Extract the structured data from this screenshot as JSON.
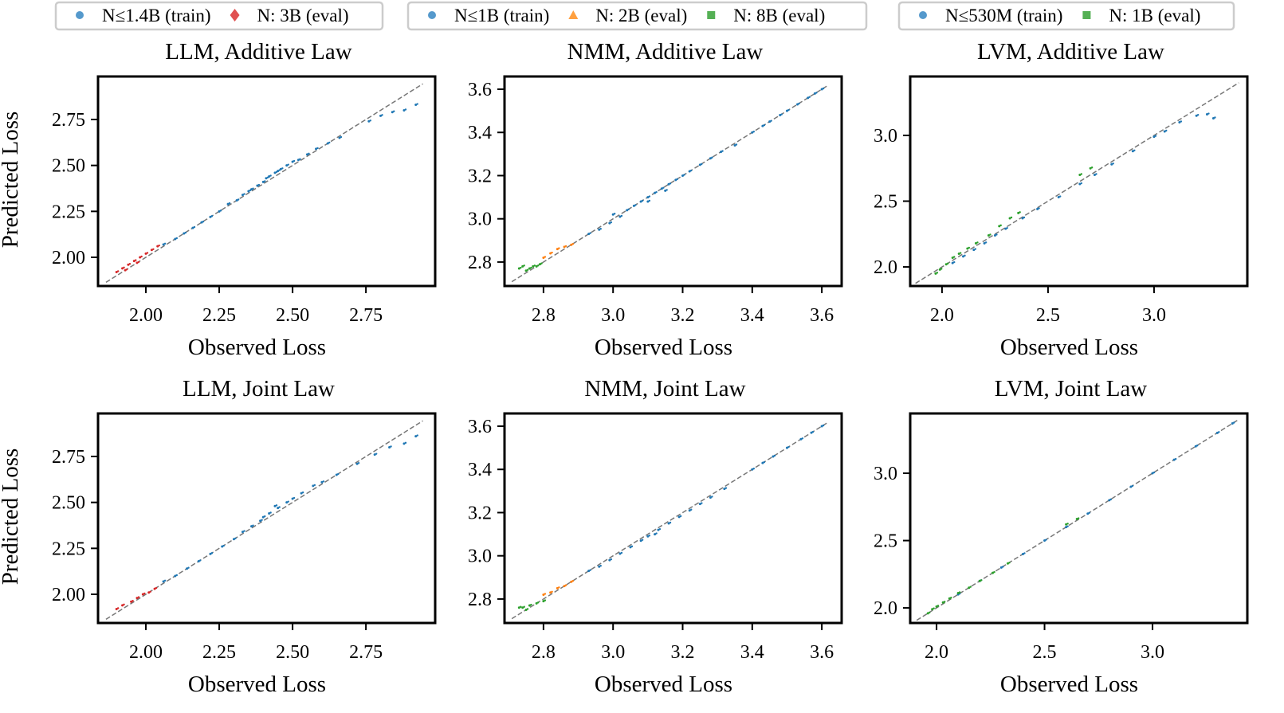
{
  "colors": {
    "train": "#1f77b4",
    "eval_red": "#d62728",
    "eval_orange": "#ff7f0e",
    "eval_green": "#2ca02c",
    "legend_train": "#5599cc",
    "legend_red": "#e05050",
    "legend_orange": "#ffa040",
    "legend_green": "#55b055",
    "diagonal": "#777777"
  },
  "chart_data": [
    {
      "type": "scatter",
      "title": "LLM, Additive Law",
      "xlabel": "Observed Loss",
      "ylabel": "Predicted Loss",
      "xlim": [
        1.837,
        2.986
      ],
      "ylim": [
        1.844,
        2.984
      ],
      "xticks": [
        "2.00",
        "2.25",
        "2.50",
        "2.75"
      ],
      "yticks": [
        "2.00",
        "2.25",
        "2.50",
        "2.75"
      ],
      "legend": [
        {
          "label": "N≤1.4B (train)",
          "marker": "circle",
          "color": "legend_train"
        },
        {
          "label": "N: 3B (eval)",
          "marker": "diamond",
          "color": "legend_red"
        }
      ],
      "series": [
        {
          "name": "N≤1.4B (train)",
          "color": "train",
          "points": [
            [
              2.06,
              2.07
            ],
            [
              2.1,
              2.1
            ],
            [
              2.13,
              2.13
            ],
            [
              2.16,
              2.16
            ],
            [
              2.19,
              2.19
            ],
            [
              2.22,
              2.22
            ],
            [
              2.25,
              2.25
            ],
            [
              2.28,
              2.29
            ],
            [
              2.31,
              2.31
            ],
            [
              2.33,
              2.34
            ],
            [
              2.36,
              2.37
            ],
            [
              2.38,
              2.39
            ],
            [
              2.4,
              2.41
            ],
            [
              2.42,
              2.44
            ],
            [
              2.44,
              2.46
            ],
            [
              2.46,
              2.48
            ],
            [
              2.48,
              2.5
            ],
            [
              2.5,
              2.52
            ],
            [
              2.52,
              2.53
            ],
            [
              2.55,
              2.56
            ],
            [
              2.58,
              2.59
            ],
            [
              2.62,
              2.62
            ],
            [
              2.66,
              2.65
            ],
            [
              2.76,
              2.74
            ],
            [
              2.8,
              2.77
            ],
            [
              2.84,
              2.79
            ],
            [
              2.88,
              2.8
            ],
            [
              2.92,
              2.83
            ],
            [
              2.45,
              2.47
            ],
            [
              2.41,
              2.43
            ],
            [
              2.35,
              2.36
            ]
          ]
        },
        {
          "name": "N: 3B (eval)",
          "color": "eval_red",
          "points": [
            [
              1.9,
              1.92
            ],
            [
              1.92,
              1.94
            ],
            [
              1.94,
              1.96
            ],
            [
              1.96,
              1.98
            ],
            [
              1.98,
              2.0
            ],
            [
              2.0,
              2.02
            ],
            [
              2.02,
              2.04
            ],
            [
              2.04,
              2.06
            ],
            [
              1.93,
              1.93
            ],
            [
              1.97,
              1.97
            ]
          ]
        }
      ]
    },
    {
      "type": "scatter",
      "title": "NMM, Additive Law",
      "xlabel": "Observed Loss",
      "ylabel": "",
      "xlim": [
        2.688,
        3.657
      ],
      "ylim": [
        2.689,
        3.659
      ],
      "xticks": [
        "2.8",
        "3.0",
        "3.2",
        "3.4",
        "3.6"
      ],
      "yticks": [
        "2.8",
        "3.0",
        "3.2",
        "3.4",
        "3.6"
      ],
      "legend": [
        {
          "label": "N≤1B (train)",
          "marker": "circle",
          "color": "legend_train"
        },
        {
          "label": "N: 2B (eval)",
          "marker": "triangle",
          "color": "legend_orange"
        },
        {
          "label": "N: 8B (eval)",
          "marker": "square",
          "color": "legend_green"
        }
      ],
      "series": [
        {
          "name": "N≤1B (train)",
          "color": "train",
          "points": [
            [
              2.93,
              2.93
            ],
            [
              2.96,
              2.95
            ],
            [
              2.99,
              2.98
            ],
            [
              3.02,
              3.01
            ],
            [
              3.04,
              3.04
            ],
            [
              3.06,
              3.06
            ],
            [
              3.08,
              3.08
            ],
            [
              3.1,
              3.1
            ],
            [
              3.12,
              3.12
            ],
            [
              3.14,
              3.14
            ],
            [
              3.16,
              3.16
            ],
            [
              3.18,
              3.18
            ],
            [
              3.2,
              3.2
            ],
            [
              3.22,
              3.22
            ],
            [
              3.25,
              3.25
            ],
            [
              3.28,
              3.28
            ],
            [
              3.31,
              3.31
            ],
            [
              3.35,
              3.34
            ],
            [
              3.4,
              3.4
            ],
            [
              3.43,
              3.43
            ],
            [
              3.45,
              3.45
            ],
            [
              3.48,
              3.48
            ],
            [
              3.5,
              3.5
            ],
            [
              3.53,
              3.53
            ],
            [
              3.56,
              3.56
            ],
            [
              3.58,
              3.58
            ],
            [
              3.6,
              3.6
            ],
            [
              3.1,
              3.08
            ],
            [
              3.15,
              3.13
            ],
            [
              3.0,
              3.02
            ]
          ]
        },
        {
          "name": "N: 2B (eval)",
          "color": "eval_orange",
          "points": [
            [
              2.8,
              2.82
            ],
            [
              2.82,
              2.84
            ],
            [
              2.84,
              2.86
            ],
            [
              2.86,
              2.87
            ],
            [
              2.88,
              2.88
            ]
          ]
        },
        {
          "name": "N: 8B (eval)",
          "color": "eval_green",
          "points": [
            [
              2.73,
              2.77
            ],
            [
              2.74,
              2.78
            ],
            [
              2.76,
              2.77
            ],
            [
              2.77,
              2.78
            ],
            [
              2.78,
              2.78
            ],
            [
              2.79,
              2.79
            ],
            [
              2.75,
              2.76
            ]
          ]
        }
      ]
    },
    {
      "type": "scatter",
      "title": "LVM, Additive Law",
      "xlabel": "Observed Loss",
      "ylabel": "",
      "xlim": [
        1.85,
        3.44
      ],
      "ylim": [
        1.855,
        3.448
      ],
      "xticks": [
        "2.0",
        "2.5",
        "3.0"
      ],
      "yticks": [
        "2.0",
        "2.5",
        "3.0"
      ],
      "legend": [
        {
          "label": "N≤530M (train)",
          "marker": "circle",
          "color": "legend_train"
        },
        {
          "label": "N: 1B (eval)",
          "marker": "square",
          "color": "legend_green"
        }
      ],
      "series": [
        {
          "name": "N≤530M (train)",
          "color": "train",
          "points": [
            [
              2.05,
              2.03
            ],
            [
              2.1,
              2.08
            ],
            [
              2.15,
              2.13
            ],
            [
              2.2,
              2.18
            ],
            [
              2.25,
              2.24
            ],
            [
              2.3,
              2.29
            ],
            [
              2.38,
              2.37
            ],
            [
              2.45,
              2.44
            ],
            [
              2.55,
              2.53
            ],
            [
              2.65,
              2.63
            ],
            [
              2.72,
              2.7
            ],
            [
              2.8,
              2.78
            ],
            [
              2.9,
              2.88
            ],
            [
              3.0,
              2.99
            ],
            [
              3.05,
              3.03
            ],
            [
              3.12,
              3.1
            ],
            [
              3.2,
              3.15
            ],
            [
              3.25,
              3.16
            ],
            [
              3.28,
              3.13
            ]
          ]
        },
        {
          "name": "N: 1B (eval)",
          "color": "eval_green",
          "points": [
            [
              1.97,
              1.95
            ],
            [
              1.99,
              1.98
            ],
            [
              2.02,
              2.02
            ],
            [
              2.05,
              2.07
            ],
            [
              2.08,
              2.1
            ],
            [
              2.12,
              2.14
            ],
            [
              2.16,
              2.18
            ],
            [
              2.22,
              2.24
            ],
            [
              2.27,
              2.31
            ],
            [
              2.32,
              2.37
            ],
            [
              2.36,
              2.41
            ],
            [
              2.65,
              2.7
            ],
            [
              2.7,
              2.75
            ]
          ]
        }
      ]
    },
    {
      "type": "scatter",
      "title": "LLM, Joint Law",
      "xlabel": "Observed Loss",
      "ylabel": "Predicted Loss",
      "xlim": [
        1.837,
        2.986
      ],
      "ylim": [
        1.844,
        2.984
      ],
      "xticks": [
        "2.00",
        "2.25",
        "2.50",
        "2.75"
      ],
      "yticks": [
        "2.00",
        "2.25",
        "2.50",
        "2.75"
      ],
      "series": [
        {
          "name": "N≤1.4B (train)",
          "color": "train",
          "points": [
            [
              2.06,
              2.07
            ],
            [
              2.1,
              2.1
            ],
            [
              2.14,
              2.14
            ],
            [
              2.18,
              2.18
            ],
            [
              2.22,
              2.22
            ],
            [
              2.26,
              2.26
            ],
            [
              2.3,
              2.3
            ],
            [
              2.33,
              2.34
            ],
            [
              2.36,
              2.37
            ],
            [
              2.39,
              2.4
            ],
            [
              2.42,
              2.44
            ],
            [
              2.45,
              2.47
            ],
            [
              2.48,
              2.5
            ],
            [
              2.5,
              2.52
            ],
            [
              2.53,
              2.55
            ],
            [
              2.57,
              2.59
            ],
            [
              2.6,
              2.61
            ],
            [
              2.65,
              2.65
            ],
            [
              2.72,
              2.71
            ],
            [
              2.78,
              2.76
            ],
            [
              2.83,
              2.8
            ],
            [
              2.88,
              2.82
            ],
            [
              2.92,
              2.86
            ],
            [
              2.44,
              2.48
            ],
            [
              2.4,
              2.42
            ]
          ]
        },
        {
          "name": "N: 3B (eval)",
          "color": "eval_red",
          "points": [
            [
              1.9,
              1.92
            ],
            [
              1.92,
              1.94
            ],
            [
              1.95,
              1.96
            ],
            [
              1.97,
              1.98
            ],
            [
              1.99,
              2.0
            ],
            [
              2.01,
              2.01
            ],
            [
              2.03,
              2.03
            ]
          ]
        }
      ]
    },
    {
      "type": "scatter",
      "title": "NMM, Joint Law",
      "xlabel": "Observed Loss",
      "ylabel": "",
      "xlim": [
        2.688,
        3.657
      ],
      "ylim": [
        2.689,
        3.659
      ],
      "xticks": [
        "2.8",
        "3.0",
        "3.2",
        "3.4",
        "3.6"
      ],
      "yticks": [
        "2.8",
        "3.0",
        "3.2",
        "3.4",
        "3.6"
      ],
      "series": [
        {
          "name": "N≤1B (train)",
          "color": "train",
          "points": [
            [
              2.93,
              2.93
            ],
            [
              2.96,
              2.95
            ],
            [
              2.99,
              2.98
            ],
            [
              3.02,
              3.01
            ],
            [
              3.05,
              3.04
            ],
            [
              3.08,
              3.07
            ],
            [
              3.1,
              3.09
            ],
            [
              3.13,
              3.12
            ],
            [
              3.16,
              3.15
            ],
            [
              3.19,
              3.18
            ],
            [
              3.22,
              3.21
            ],
            [
              3.25,
              3.24
            ],
            [
              3.28,
              3.27
            ],
            [
              3.32,
              3.31
            ],
            [
              3.4,
              3.4
            ],
            [
              3.43,
              3.43
            ],
            [
              3.46,
              3.46
            ],
            [
              3.5,
              3.5
            ],
            [
              3.54,
              3.54
            ],
            [
              3.57,
              3.57
            ],
            [
              3.6,
              3.6
            ],
            [
              3.12,
              3.1
            ]
          ]
        },
        {
          "name": "N: 2B (eval)",
          "color": "eval_orange",
          "points": [
            [
              2.8,
              2.82
            ],
            [
              2.82,
              2.83
            ],
            [
              2.84,
              2.85
            ],
            [
              2.86,
              2.86
            ],
            [
              2.88,
              2.88
            ]
          ]
        },
        {
          "name": "N: 8B (eval)",
          "color": "eval_green",
          "points": [
            [
              2.73,
              2.76
            ],
            [
              2.74,
              2.76
            ],
            [
              2.76,
              2.77
            ],
            [
              2.78,
              2.78
            ],
            [
              2.8,
              2.79
            ],
            [
              2.75,
              2.75
            ]
          ]
        }
      ]
    },
    {
      "type": "scatter",
      "title": "LVM, Joint Law",
      "xlabel": "Observed Loss",
      "ylabel": "",
      "xlim": [
        1.878,
        3.439
      ],
      "ylim": [
        1.888,
        3.444
      ],
      "xticks": [
        "2.0",
        "2.5",
        "3.0"
      ],
      "yticks": [
        "2.0",
        "2.5",
        "3.0"
      ],
      "series": [
        {
          "name": "N≤530M (train)",
          "color": "train",
          "points": [
            [
              2.1,
              2.1
            ],
            [
              2.2,
              2.2
            ],
            [
              2.3,
              2.3
            ],
            [
              2.4,
              2.4
            ],
            [
              2.5,
              2.5
            ],
            [
              2.6,
              2.6
            ],
            [
              2.7,
              2.7
            ],
            [
              2.8,
              2.8
            ],
            [
              2.9,
              2.9
            ],
            [
              3.0,
              3.0
            ],
            [
              3.1,
              3.1
            ],
            [
              3.2,
              3.2
            ],
            [
              3.3,
              3.3
            ],
            [
              3.37,
              3.37
            ]
          ]
        },
        {
          "name": "N: 1B (eval)",
          "color": "eval_green",
          "points": [
            [
              1.96,
              1.96
            ],
            [
              1.98,
              1.99
            ],
            [
              2.0,
              2.01
            ],
            [
              2.03,
              2.04
            ],
            [
              2.06,
              2.07
            ],
            [
              2.1,
              2.11
            ],
            [
              2.15,
              2.15
            ],
            [
              2.2,
              2.2
            ],
            [
              2.26,
              2.26
            ],
            [
              2.33,
              2.33
            ],
            [
              2.6,
              2.62
            ],
            [
              2.65,
              2.66
            ]
          ]
        }
      ]
    }
  ]
}
